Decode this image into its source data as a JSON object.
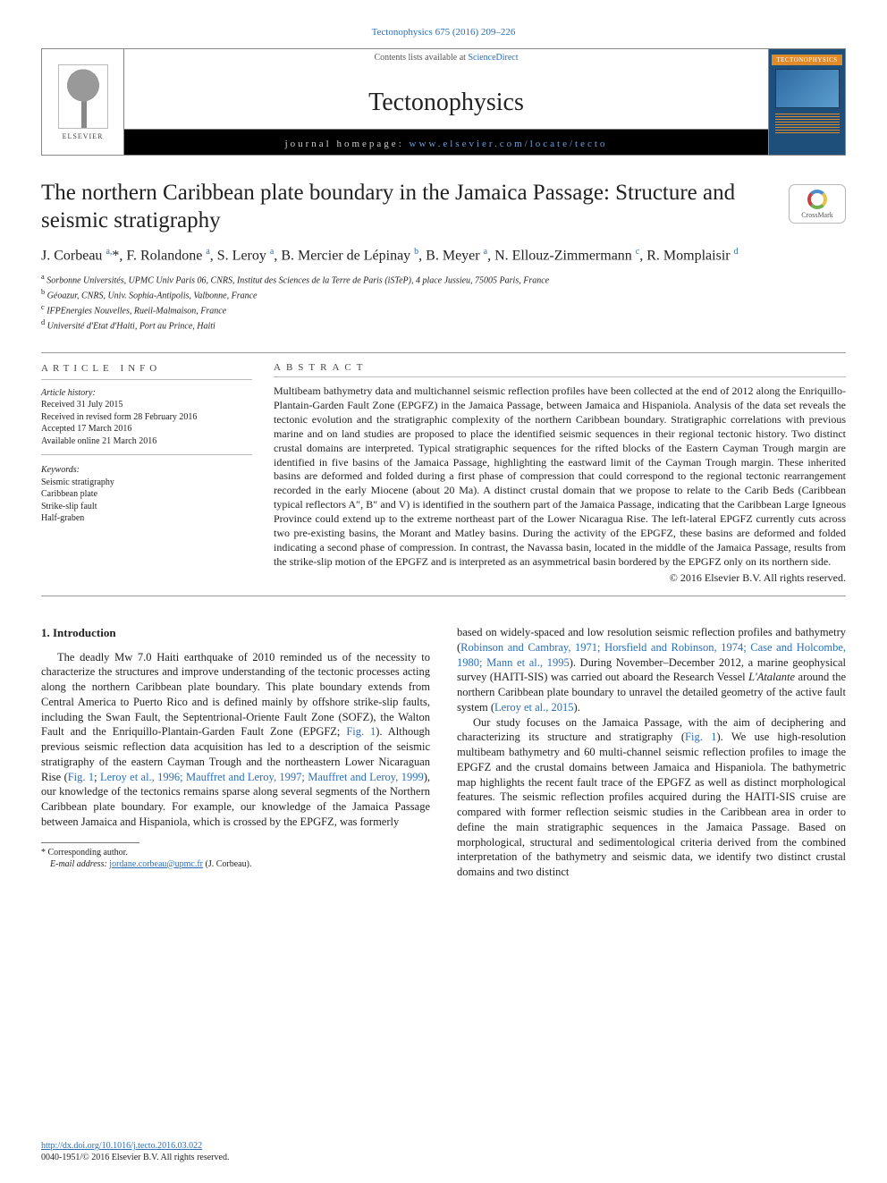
{
  "top_reference": "Tectonophysics 675 (2016) 209–226",
  "header": {
    "contents_prefix": "Contents lists available at ",
    "contents_link": "ScienceDirect",
    "journal_name": "Tectonophysics",
    "homepage_prefix": "journal homepage: ",
    "homepage_url": "www.elsevier.com/locate/tecto",
    "publisher_label": "ELSEVIER",
    "cover_label": "TECTONOPHYSICS"
  },
  "crossmark_label": "CrossMark",
  "article": {
    "title": "The northern Caribbean plate boundary in the Jamaica Passage: Structure and seismic stratigraphy",
    "authors_html": "J. Corbeau <sup>a,</sup>*, F. Rolandone <sup>a</sup>, S. Leroy <sup>a</sup>, B. Mercier de Lépinay <sup>b</sup>, B. Meyer <sup>a</sup>, N. Ellouz-Zimmermann <sup>c</sup>, R. Momplaisir <sup>d</sup>",
    "affiliations": [
      "a  Sorbonne Universités, UPMC Univ Paris 06, CNRS, Institut des Sciences de la Terre de Paris (iSTeP), 4 place Jussieu, 75005 Paris, France",
      "b  Géoazur, CNRS, Univ. Sophia-Antipolis, Valbonne, France",
      "c  IFPEnergies Nouvelles, Rueil-Malmaison, France",
      "d  Université d'Etat d'Haiti, Port au Prince, Haiti"
    ]
  },
  "info": {
    "label": "ARTICLE INFO",
    "history_label": "Article history:",
    "history": [
      "Received 31 July 2015",
      "Received in revised form 28 February 2016",
      "Accepted 17 March 2016",
      "Available online 21 March 2016"
    ],
    "keywords_label": "Keywords:",
    "keywords": [
      "Seismic stratigraphy",
      "Caribbean plate",
      "Strike-slip fault",
      "Half-graben"
    ]
  },
  "abstract": {
    "label": "ABSTRACT",
    "text": "Multibeam bathymetry data and multichannel seismic reflection profiles have been collected at the end of 2012 along the Enriquillo-Plantain-Garden Fault Zone (EPGFZ) in the Jamaica Passage, between Jamaica and Hispaniola. Analysis of the data set reveals the tectonic evolution and the stratigraphic complexity of the northern Caribbean boundary. Stratigraphic correlations with previous marine and on land studies are proposed to place the identified seismic sequences in their regional tectonic history. Two distinct crustal domains are interpreted. Typical stratigraphic sequences for the rifted blocks of the Eastern Cayman Trough margin are identified in five basins of the Jamaica Passage, highlighting the eastward limit of the Cayman Trough margin. These inherited basins are deformed and folded during a first phase of compression that could correspond to the regional tectonic rearrangement recorded in the early Miocene (about 20 Ma). A distinct crustal domain that we propose to relate to the Carib Beds (Caribbean typical reflectors A″, B″ and V) is identified in the southern part of the Jamaica Passage, indicating that the Caribbean Large Igneous Province could extend up to the extreme northeast part of the Lower Nicaragua Rise. The left-lateral EPGFZ currently cuts across two pre-existing basins, the Morant and Matley basins. During the activity of the EPGFZ, these basins are deformed and folded indicating a second phase of compression. In contrast, the Navassa basin, located in the middle of the Jamaica Passage, results from the strike-slip motion of the EPGFZ and is interpreted as an asymmetrical basin bordered by the EPGFZ only on its northern side.",
    "copyright": "© 2016 Elsevier B.V. All rights reserved."
  },
  "body": {
    "heading": "1. Introduction",
    "col1_p1": "The deadly Mw 7.0 Haiti earthquake of 2010 reminded us of the necessity to characterize the structures and improve understanding of the tectonic processes acting along the northern Caribbean plate boundary. This plate boundary extends from Central America to Puerto Rico and is defined mainly by offshore strike-slip faults, including the Swan Fault, the Septentrional-Oriente Fault Zone (SOFZ), the Walton Fault and the Enriquillo-Plantain-Garden Fault Zone (EPGFZ; Fig. 1). Although previous seismic reflection data acquisition has led to a description of the seismic stratigraphy of the eastern Cayman Trough and the northeastern Lower Nicaraguan Rise (Fig. 1; Leroy et al., 1996; Mauffret and Leroy, 1997; Mauffret and Leroy, 1999), our knowledge of the tectonics remains sparse along several segments of the Northern Caribbean plate boundary. For example, our knowledge of the Jamaica Passage between Jamaica and Hispaniola, which is crossed by the EPGFZ, was formerly",
    "col2_p1": "based on widely-spaced and low resolution seismic reflection profiles and bathymetry (Robinson and Cambray, 1971; Horsfield and Robinson, 1974; Case and Holcombe, 1980; Mann et al., 1995). During November–December 2012, a marine geophysical survey (HAITI-SIS) was carried out aboard the Research Vessel L'Atalante around the northern Caribbean plate boundary to unravel the detailed geometry of the active fault system (Leroy et al., 2015).",
    "col2_p2": "Our study focuses on the Jamaica Passage, with the aim of deciphering and characterizing its structure and stratigraphy (Fig. 1). We use high-resolution multibeam bathymetry and 60 multi-channel seismic reflection profiles to image the EPGFZ and the crustal domains between Jamaica and Hispaniola. The bathymetric map highlights the recent fault trace of the EPGFZ as well as distinct morphological features. The seismic reflection profiles acquired during the HAITI-SIS cruise are compared with former reflection seismic studies in the Caribbean area in order to define the main stratigraphic sequences in the Jamaica Passage. Based on morphological, structural and sedimentological criteria derived from the combined interpretation of the bathymetry and seismic data, we identify two distinct crustal domains and two distinct"
  },
  "footnote": {
    "corresponding": "* Corresponding author.",
    "email_label": "E-mail address:",
    "email": "jordane.corbeau@upmc.fr",
    "email_suffix": " (J. Corbeau)."
  },
  "footer": {
    "doi": "http://dx.doi.org/10.1016/j.tecto.2016.03.022",
    "issn_line": "0040-1951/© 2016 Elsevier B.V. All rights reserved."
  },
  "colors": {
    "link": "#2a6ebb",
    "text": "#222222",
    "rule": "#999999"
  }
}
